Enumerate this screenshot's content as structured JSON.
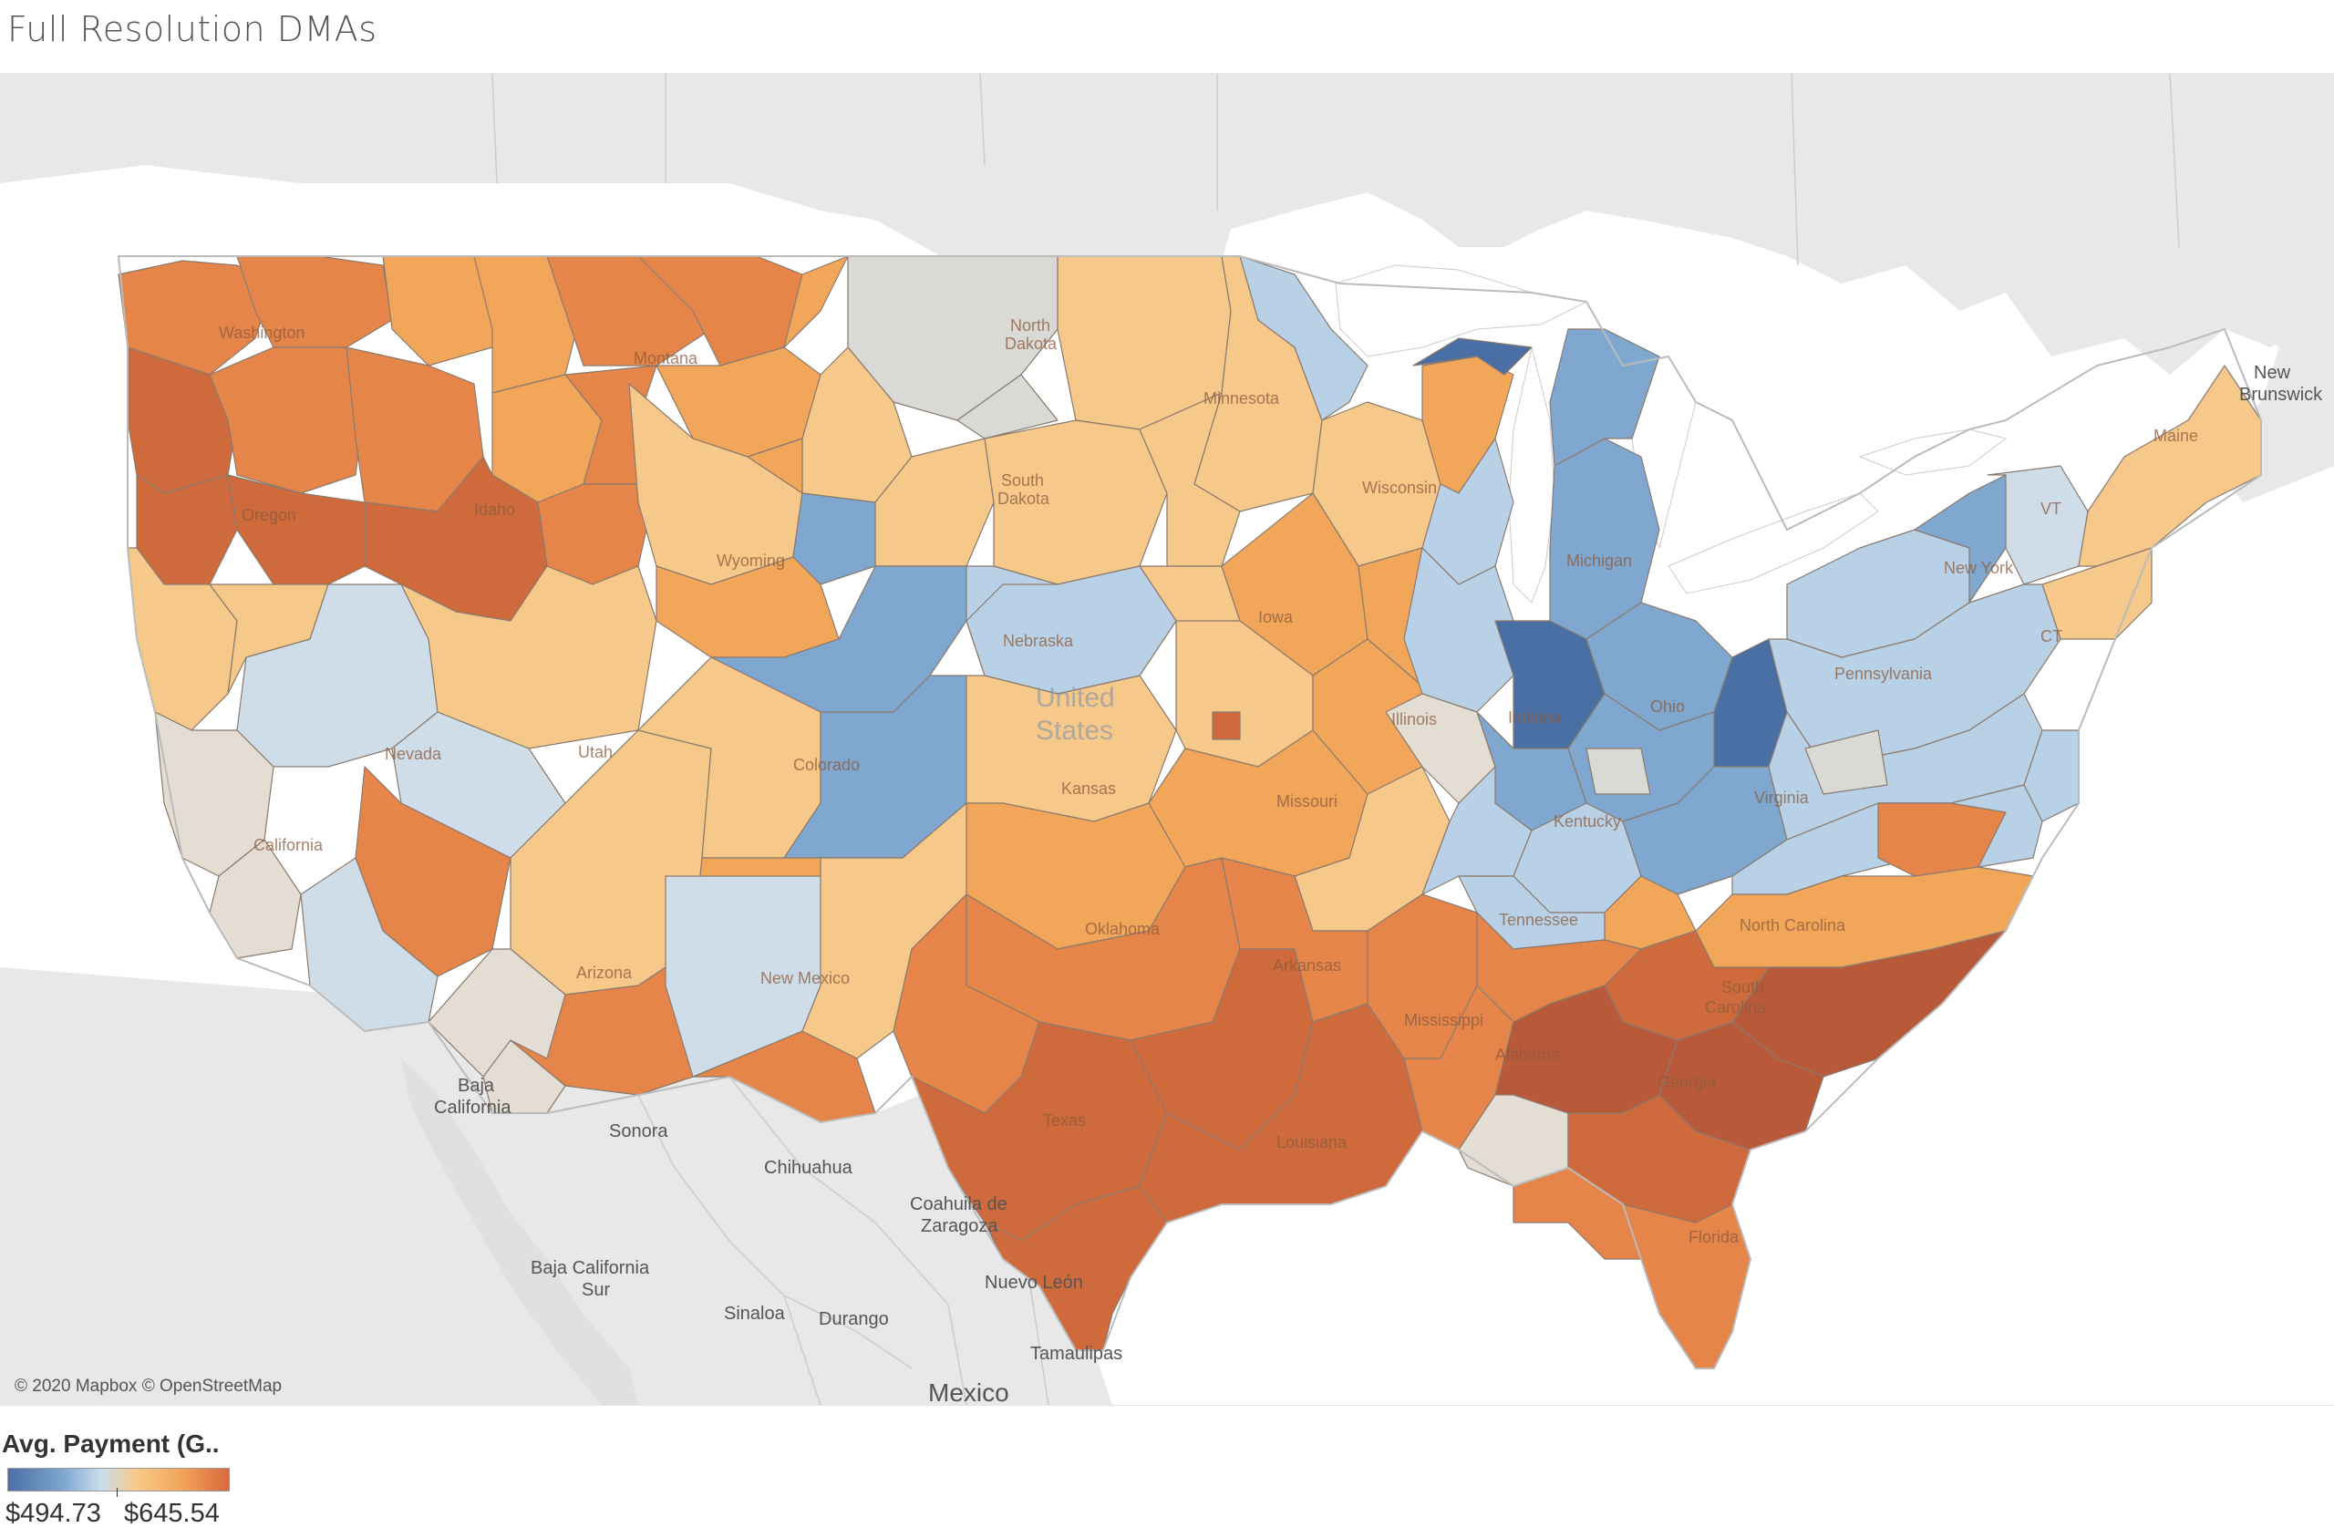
{
  "title": "Full Resolution DMAs",
  "attribution": "© 2020 Mapbox © OpenStreetMap",
  "legend": {
    "title": "Avg. Payment (G..",
    "min": "$494.73",
    "max": "$645.54"
  },
  "colors": {
    "darkest_blue": "#4a6fa5",
    "blue": "#7fa7cf",
    "light_blue": "#b9d1e6",
    "pale_blue": "#cfdde8",
    "neutral": "#e3ddd3",
    "pale_orange": "#f6c88a",
    "orange": "#f2a65a",
    "dark_orange": "#e5854a",
    "deep_orange": "#cf6a3c",
    "brick": "#b85a3a",
    "land": "#e8e8e8",
    "water": "#ffffff",
    "grey_region": "#d9d9d6"
  },
  "labels": {
    "country": [
      "United",
      "States"
    ],
    "states": {
      "washington": "Washington",
      "montana": "Montana",
      "north_dakota_1": "North",
      "north_dakota_2": "Dakota",
      "minnesota": "Minnesota",
      "oregon": "Oregon",
      "idaho": "Idaho",
      "south_dakota_1": "South",
      "south_dakota_2": "Dakota",
      "wisconsin": "Wisconsin",
      "wyoming": "Wyoming",
      "michigan": "Michigan",
      "new_york": "New York",
      "vt": "VT",
      "maine": "Maine",
      "nebraska": "Nebraska",
      "iowa": "Iowa",
      "nevada": "Nevada",
      "utah": "Utah",
      "colorado": "Colorado",
      "illinois": "Illinois",
      "indiana": "Indiana",
      "ohio": "Ohio",
      "pennsylvania": "Pennsylvania",
      "ct": "CT",
      "kansas": "Kansas",
      "missouri": "Missouri",
      "kentucky": "Kentucky",
      "virginia": "Virginia",
      "california": "California",
      "oklahoma": "Oklahoma",
      "tennessee": "Tennessee",
      "north_carolina": "North Carolina",
      "arizona": "Arizona",
      "new_mexico": "New Mexico",
      "arkansas": "Arkansas",
      "south_carolina_1": "South",
      "south_carolina_2": "Carolina",
      "mississippi": "Mississippi",
      "alabama": "Alabama",
      "georgia": "Georgia",
      "texas": "Texas",
      "louisiana": "Louisiana",
      "florida": "Florida"
    },
    "geo": {
      "new_brunswick_1": "New",
      "new_brunswick_2": "Brunswick",
      "baja_california_1": "Baja",
      "baja_california_2": "California",
      "sonora": "Sonora",
      "chihuahua": "Chihuahua",
      "coahuila_1": "Coahuila de",
      "coahuila_2": "Zaragoza",
      "baja_sur_1": "Baja California",
      "baja_sur_2": "Sur",
      "nuevo_leon": "Nuevo León",
      "sinaloa": "Sinaloa",
      "durango": "Durango",
      "tamaulipas": "Tamaulipas",
      "mexico": "Mexico"
    }
  }
}
